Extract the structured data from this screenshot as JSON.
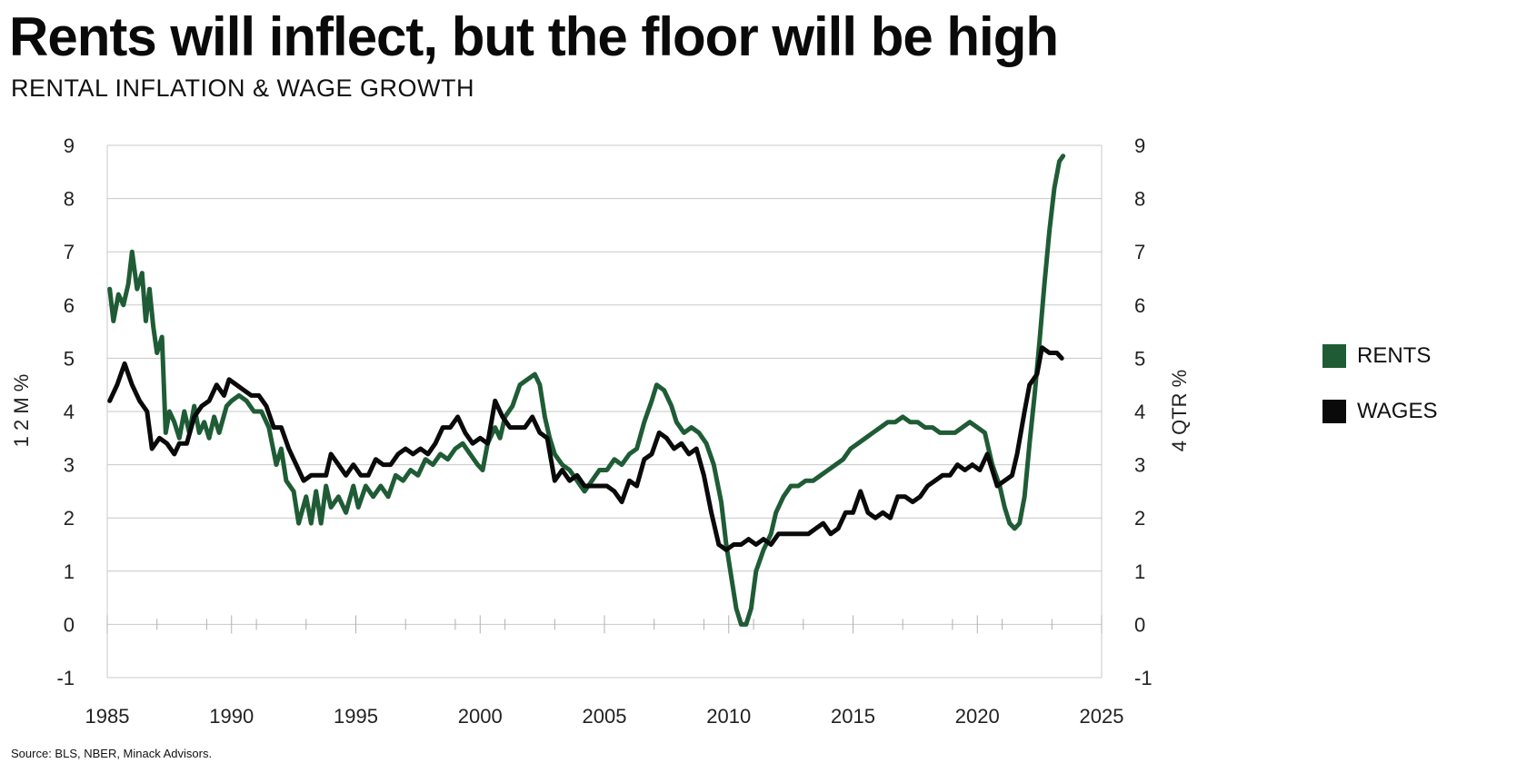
{
  "title": "Rents will inflect, but the floor will be high",
  "subtitle": "RENTAL INFLATION & WAGE GROWTH",
  "source": "Source: BLS, NBER, Minack Advisors.",
  "chart_data": {
    "type": "line",
    "ylabel_left": "1 2 M %",
    "ylabel_right": "4 QTR %",
    "xlim": [
      1985,
      2025
    ],
    "ylim": [
      -1,
      9
    ],
    "x_ticks": [
      "1985",
      "1990",
      "1995",
      "2000",
      "2005",
      "2010",
      "2015",
      "2020",
      "2025"
    ],
    "y_ticks_left": [
      "-1",
      "0",
      "1",
      "2",
      "3",
      "4",
      "5",
      "6",
      "7",
      "8",
      "9"
    ],
    "y_ticks_right": [
      "-1",
      "0",
      "1",
      "2",
      "3",
      "4",
      "5",
      "6",
      "7",
      "8",
      "9"
    ],
    "grid": "horizontal",
    "legend_position": "right",
    "series": [
      {
        "name": "RENTS",
        "color": "#1f5c36",
        "points": [
          [
            1985.1,
            6.3
          ],
          [
            1985.25,
            5.7
          ],
          [
            1985.45,
            6.2
          ],
          [
            1985.65,
            6.0
          ],
          [
            1985.85,
            6.4
          ],
          [
            1986.0,
            7.0
          ],
          [
            1986.2,
            6.3
          ],
          [
            1986.4,
            6.6
          ],
          [
            1986.55,
            5.7
          ],
          [
            1986.7,
            6.3
          ],
          [
            1986.85,
            5.6
          ],
          [
            1987.0,
            5.1
          ],
          [
            1987.2,
            5.4
          ],
          [
            1987.35,
            3.6
          ],
          [
            1987.5,
            4.0
          ],
          [
            1987.7,
            3.8
          ],
          [
            1987.9,
            3.5
          ],
          [
            1988.1,
            4.0
          ],
          [
            1988.3,
            3.6
          ],
          [
            1988.5,
            4.1
          ],
          [
            1988.7,
            3.6
          ],
          [
            1988.9,
            3.8
          ],
          [
            1989.1,
            3.5
          ],
          [
            1989.3,
            3.9
          ],
          [
            1989.5,
            3.6
          ],
          [
            1989.8,
            4.1
          ],
          [
            1990.0,
            4.2
          ],
          [
            1990.3,
            4.3
          ],
          [
            1990.6,
            4.2
          ],
          [
            1990.9,
            4.0
          ],
          [
            1991.2,
            4.0
          ],
          [
            1991.5,
            3.7
          ],
          [
            1991.8,
            3.0
          ],
          [
            1992.0,
            3.3
          ],
          [
            1992.2,
            2.7
          ],
          [
            1992.5,
            2.5
          ],
          [
            1992.7,
            1.9
          ],
          [
            1993.0,
            2.4
          ],
          [
            1993.2,
            1.9
          ],
          [
            1993.4,
            2.5
          ],
          [
            1993.6,
            1.9
          ],
          [
            1993.8,
            2.6
          ],
          [
            1994.0,
            2.2
          ],
          [
            1994.3,
            2.4
          ],
          [
            1994.6,
            2.1
          ],
          [
            1994.9,
            2.6
          ],
          [
            1995.1,
            2.2
          ],
          [
            1995.4,
            2.6
          ],
          [
            1995.7,
            2.4
          ],
          [
            1996.0,
            2.6
          ],
          [
            1996.3,
            2.4
          ],
          [
            1996.6,
            2.8
          ],
          [
            1996.9,
            2.7
          ],
          [
            1997.2,
            2.9
          ],
          [
            1997.5,
            2.8
          ],
          [
            1997.8,
            3.1
          ],
          [
            1998.1,
            3.0
          ],
          [
            1998.4,
            3.2
          ],
          [
            1998.7,
            3.1
          ],
          [
            1999.0,
            3.3
          ],
          [
            1999.3,
            3.4
          ],
          [
            1999.6,
            3.2
          ],
          [
            1999.9,
            3.0
          ],
          [
            2000.1,
            2.9
          ],
          [
            2000.3,
            3.4
          ],
          [
            2000.6,
            3.7
          ],
          [
            2000.8,
            3.5
          ],
          [
            2001.0,
            3.9
          ],
          [
            2001.3,
            4.1
          ],
          [
            2001.6,
            4.5
          ],
          [
            2001.9,
            4.6
          ],
          [
            2002.2,
            4.7
          ],
          [
            2002.4,
            4.5
          ],
          [
            2002.6,
            3.9
          ],
          [
            2002.8,
            3.5
          ],
          [
            2003.0,
            3.2
          ],
          [
            2003.3,
            3.0
          ],
          [
            2003.6,
            2.9
          ],
          [
            2003.9,
            2.7
          ],
          [
            2004.2,
            2.5
          ],
          [
            2004.5,
            2.7
          ],
          [
            2004.8,
            2.9
          ],
          [
            2005.1,
            2.9
          ],
          [
            2005.4,
            3.1
          ],
          [
            2005.7,
            3.0
          ],
          [
            2006.0,
            3.2
          ],
          [
            2006.3,
            3.3
          ],
          [
            2006.6,
            3.8
          ],
          [
            2006.9,
            4.2
          ],
          [
            2007.1,
            4.5
          ],
          [
            2007.4,
            4.4
          ],
          [
            2007.7,
            4.1
          ],
          [
            2007.9,
            3.8
          ],
          [
            2008.2,
            3.6
          ],
          [
            2008.5,
            3.7
          ],
          [
            2008.8,
            3.6
          ],
          [
            2009.1,
            3.4
          ],
          [
            2009.4,
            3.0
          ],
          [
            2009.7,
            2.3
          ],
          [
            2009.9,
            1.5
          ],
          [
            2010.1,
            0.9
          ],
          [
            2010.3,
            0.3
          ],
          [
            2010.5,
            0.0
          ],
          [
            2010.7,
            0.0
          ],
          [
            2010.9,
            0.3
          ],
          [
            2011.1,
            1.0
          ],
          [
            2011.4,
            1.4
          ],
          [
            2011.7,
            1.7
          ],
          [
            2011.9,
            2.1
          ],
          [
            2012.2,
            2.4
          ],
          [
            2012.5,
            2.6
          ],
          [
            2012.8,
            2.6
          ],
          [
            2013.1,
            2.7
          ],
          [
            2013.4,
            2.7
          ],
          [
            2013.7,
            2.8
          ],
          [
            2014.0,
            2.9
          ],
          [
            2014.3,
            3.0
          ],
          [
            2014.6,
            3.1
          ],
          [
            2014.9,
            3.3
          ],
          [
            2015.2,
            3.4
          ],
          [
            2015.5,
            3.5
          ],
          [
            2015.8,
            3.6
          ],
          [
            2016.1,
            3.7
          ],
          [
            2016.4,
            3.8
          ],
          [
            2016.7,
            3.8
          ],
          [
            2017.0,
            3.9
          ],
          [
            2017.3,
            3.8
          ],
          [
            2017.6,
            3.8
          ],
          [
            2017.9,
            3.7
          ],
          [
            2018.2,
            3.7
          ],
          [
            2018.5,
            3.6
          ],
          [
            2018.8,
            3.6
          ],
          [
            2019.1,
            3.6
          ],
          [
            2019.4,
            3.7
          ],
          [
            2019.7,
            3.8
          ],
          [
            2020.0,
            3.7
          ],
          [
            2020.3,
            3.6
          ],
          [
            2020.6,
            3.0
          ],
          [
            2020.9,
            2.6
          ],
          [
            2021.1,
            2.2
          ],
          [
            2021.3,
            1.9
          ],
          [
            2021.5,
            1.8
          ],
          [
            2021.7,
            1.9
          ],
          [
            2021.9,
            2.4
          ],
          [
            2022.1,
            3.4
          ],
          [
            2022.3,
            4.3
          ],
          [
            2022.5,
            5.3
          ],
          [
            2022.7,
            6.4
          ],
          [
            2022.9,
            7.4
          ],
          [
            2023.1,
            8.2
          ],
          [
            2023.3,
            8.7
          ],
          [
            2023.45,
            8.8
          ]
        ]
      },
      {
        "name": "WAGES",
        "color": "#0a0a0a",
        "points": [
          [
            1985.1,
            4.2
          ],
          [
            1985.4,
            4.5
          ],
          [
            1985.7,
            4.9
          ],
          [
            1986.0,
            4.5
          ],
          [
            1986.3,
            4.2
          ],
          [
            1986.6,
            4.0
          ],
          [
            1986.8,
            3.3
          ],
          [
            1987.1,
            3.5
          ],
          [
            1987.4,
            3.4
          ],
          [
            1987.7,
            3.2
          ],
          [
            1987.9,
            3.4
          ],
          [
            1988.2,
            3.4
          ],
          [
            1988.5,
            3.9
          ],
          [
            1988.8,
            4.1
          ],
          [
            1989.1,
            4.2
          ],
          [
            1989.4,
            4.5
          ],
          [
            1989.7,
            4.3
          ],
          [
            1989.9,
            4.6
          ],
          [
            1990.2,
            4.5
          ],
          [
            1990.5,
            4.4
          ],
          [
            1990.8,
            4.3
          ],
          [
            1991.1,
            4.3
          ],
          [
            1991.4,
            4.1
          ],
          [
            1991.7,
            3.7
          ],
          [
            1992.0,
            3.7
          ],
          [
            1992.3,
            3.3
          ],
          [
            1992.6,
            3.0
          ],
          [
            1992.9,
            2.7
          ],
          [
            1993.2,
            2.8
          ],
          [
            1993.5,
            2.8
          ],
          [
            1993.8,
            2.8
          ],
          [
            1994.0,
            3.2
          ],
          [
            1994.3,
            3.0
          ],
          [
            1994.6,
            2.8
          ],
          [
            1994.9,
            3.0
          ],
          [
            1995.2,
            2.8
          ],
          [
            1995.5,
            2.8
          ],
          [
            1995.8,
            3.1
          ],
          [
            1996.1,
            3.0
          ],
          [
            1996.4,
            3.0
          ],
          [
            1996.7,
            3.2
          ],
          [
            1997.0,
            3.3
          ],
          [
            1997.3,
            3.2
          ],
          [
            1997.6,
            3.3
          ],
          [
            1997.9,
            3.2
          ],
          [
            1998.2,
            3.4
          ],
          [
            1998.5,
            3.7
          ],
          [
            1998.8,
            3.7
          ],
          [
            1999.1,
            3.9
          ],
          [
            1999.4,
            3.6
          ],
          [
            1999.7,
            3.4
          ],
          [
            2000.0,
            3.5
          ],
          [
            2000.3,
            3.4
          ],
          [
            2000.6,
            4.2
          ],
          [
            2000.9,
            3.9
          ],
          [
            2001.2,
            3.7
          ],
          [
            2001.5,
            3.7
          ],
          [
            2001.8,
            3.7
          ],
          [
            2002.1,
            3.9
          ],
          [
            2002.4,
            3.6
          ],
          [
            2002.7,
            3.5
          ],
          [
            2003.0,
            2.7
          ],
          [
            2003.3,
            2.9
          ],
          [
            2003.6,
            2.7
          ],
          [
            2003.9,
            2.8
          ],
          [
            2004.2,
            2.6
          ],
          [
            2004.5,
            2.6
          ],
          [
            2004.8,
            2.6
          ],
          [
            2005.1,
            2.6
          ],
          [
            2005.4,
            2.5
          ],
          [
            2005.7,
            2.3
          ],
          [
            2006.0,
            2.7
          ],
          [
            2006.3,
            2.6
          ],
          [
            2006.6,
            3.1
          ],
          [
            2006.9,
            3.2
          ],
          [
            2007.2,
            3.6
          ],
          [
            2007.5,
            3.5
          ],
          [
            2007.8,
            3.3
          ],
          [
            2008.1,
            3.4
          ],
          [
            2008.4,
            3.2
          ],
          [
            2008.7,
            3.3
          ],
          [
            2009.0,
            2.8
          ],
          [
            2009.3,
            2.1
          ],
          [
            2009.6,
            1.5
          ],
          [
            2009.9,
            1.4
          ],
          [
            2010.2,
            1.5
          ],
          [
            2010.5,
            1.5
          ],
          [
            2010.8,
            1.6
          ],
          [
            2011.1,
            1.5
          ],
          [
            2011.4,
            1.6
          ],
          [
            2011.7,
            1.5
          ],
          [
            2012.0,
            1.7
          ],
          [
            2012.3,
            1.7
          ],
          [
            2012.6,
            1.7
          ],
          [
            2012.9,
            1.7
          ],
          [
            2013.2,
            1.7
          ],
          [
            2013.5,
            1.8
          ],
          [
            2013.8,
            1.9
          ],
          [
            2014.1,
            1.7
          ],
          [
            2014.4,
            1.8
          ],
          [
            2014.7,
            2.1
          ],
          [
            2015.0,
            2.1
          ],
          [
            2015.3,
            2.5
          ],
          [
            2015.6,
            2.1
          ],
          [
            2015.9,
            2.0
          ],
          [
            2016.2,
            2.1
          ],
          [
            2016.5,
            2.0
          ],
          [
            2016.8,
            2.4
          ],
          [
            2017.1,
            2.4
          ],
          [
            2017.4,
            2.3
          ],
          [
            2017.7,
            2.4
          ],
          [
            2018.0,
            2.6
          ],
          [
            2018.3,
            2.7
          ],
          [
            2018.6,
            2.8
          ],
          [
            2018.9,
            2.8
          ],
          [
            2019.2,
            3.0
          ],
          [
            2019.5,
            2.9
          ],
          [
            2019.8,
            3.0
          ],
          [
            2020.1,
            2.9
          ],
          [
            2020.4,
            3.2
          ],
          [
            2020.6,
            2.9
          ],
          [
            2020.8,
            2.6
          ],
          [
            2021.1,
            2.7
          ],
          [
            2021.4,
            2.8
          ],
          [
            2021.6,
            3.2
          ],
          [
            2021.9,
            4.0
          ],
          [
            2022.1,
            4.5
          ],
          [
            2022.4,
            4.7
          ],
          [
            2022.6,
            5.2
          ],
          [
            2022.9,
            5.1
          ],
          [
            2023.2,
            5.1
          ],
          [
            2023.4,
            5.0
          ]
        ]
      }
    ]
  }
}
